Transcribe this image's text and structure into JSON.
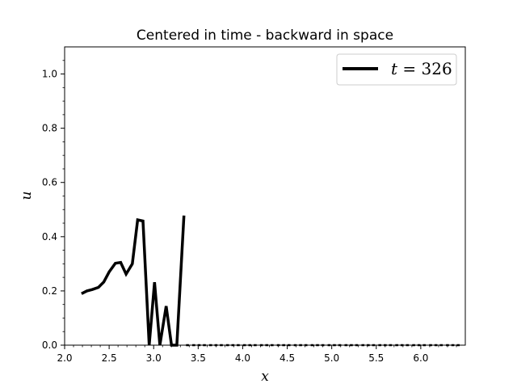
{
  "chart_data": {
    "type": "line",
    "title": "Centered in time - backward in space",
    "xlabel": "x",
    "ylabel": "u",
    "xlim": [
      2.0,
      6.5
    ],
    "ylim": [
      0.0,
      1.1
    ],
    "xticks": [
      2.0,
      2.5,
      3.0,
      3.5,
      4.0,
      4.5,
      5.0,
      5.5,
      6.0
    ],
    "xtick_labels": [
      "2.0",
      "2.5",
      "3.0",
      "3.5",
      "4.0",
      "4.5",
      "5.0",
      "5.5",
      "6.0"
    ],
    "yticks": [
      0.0,
      0.2,
      0.4,
      0.6,
      0.8,
      1.0
    ],
    "ytick_labels": [
      "0.0",
      "0.2",
      "0.4",
      "0.6",
      "0.8",
      "1.0"
    ],
    "legend_position": "upper-right",
    "legend": {
      "var": "t",
      "eq": " = ",
      "value": "326"
    },
    "line_color": "#000000",
    "series": [
      {
        "x": [
          2.19,
          2.25,
          2.31,
          2.38,
          2.44,
          2.5,
          2.57,
          2.63,
          2.69,
          2.76,
          2.82,
          2.88,
          2.95,
          3.01,
          3.07,
          3.14,
          3.2,
          3.26,
          3.34
        ],
        "values": [
          0.19,
          0.2,
          0.205,
          0.213,
          0.233,
          0.27,
          0.302,
          0.305,
          0.262,
          0.3,
          0.462,
          0.458,
          0.0,
          0.232,
          0.0,
          0.144,
          0.0,
          0.0,
          0.478
        ]
      }
    ],
    "baseline_series": {
      "x": [
        3.38,
        3.45,
        3.51,
        3.57,
        3.64,
        3.7,
        3.76,
        3.83,
        3.89,
        3.95,
        4.02,
        4.08,
        4.14,
        4.21,
        4.27,
        4.33,
        4.4,
        4.46,
        4.52,
        4.59,
        4.65,
        4.71,
        4.78,
        4.84,
        4.9,
        4.97,
        5.03,
        5.09,
        5.16,
        5.22,
        5.28,
        5.35,
        5.41,
        5.47,
        5.54,
        5.6,
        5.66,
        5.73,
        5.79,
        5.85,
        5.92,
        5.98,
        6.04,
        6.11,
        6.17,
        6.23,
        6.3,
        6.36,
        6.42
      ],
      "values": [
        0,
        0,
        0,
        0,
        0,
        0,
        0,
        0,
        0,
        0,
        0,
        0,
        0,
        0,
        0,
        0,
        0,
        0,
        0,
        0,
        0,
        0,
        0,
        0,
        0,
        0,
        0,
        0,
        0,
        0,
        0,
        0,
        0,
        0,
        0,
        0,
        0,
        0,
        0,
        0,
        0,
        0,
        0,
        0,
        0,
        0,
        0,
        0,
        0
      ]
    }
  }
}
